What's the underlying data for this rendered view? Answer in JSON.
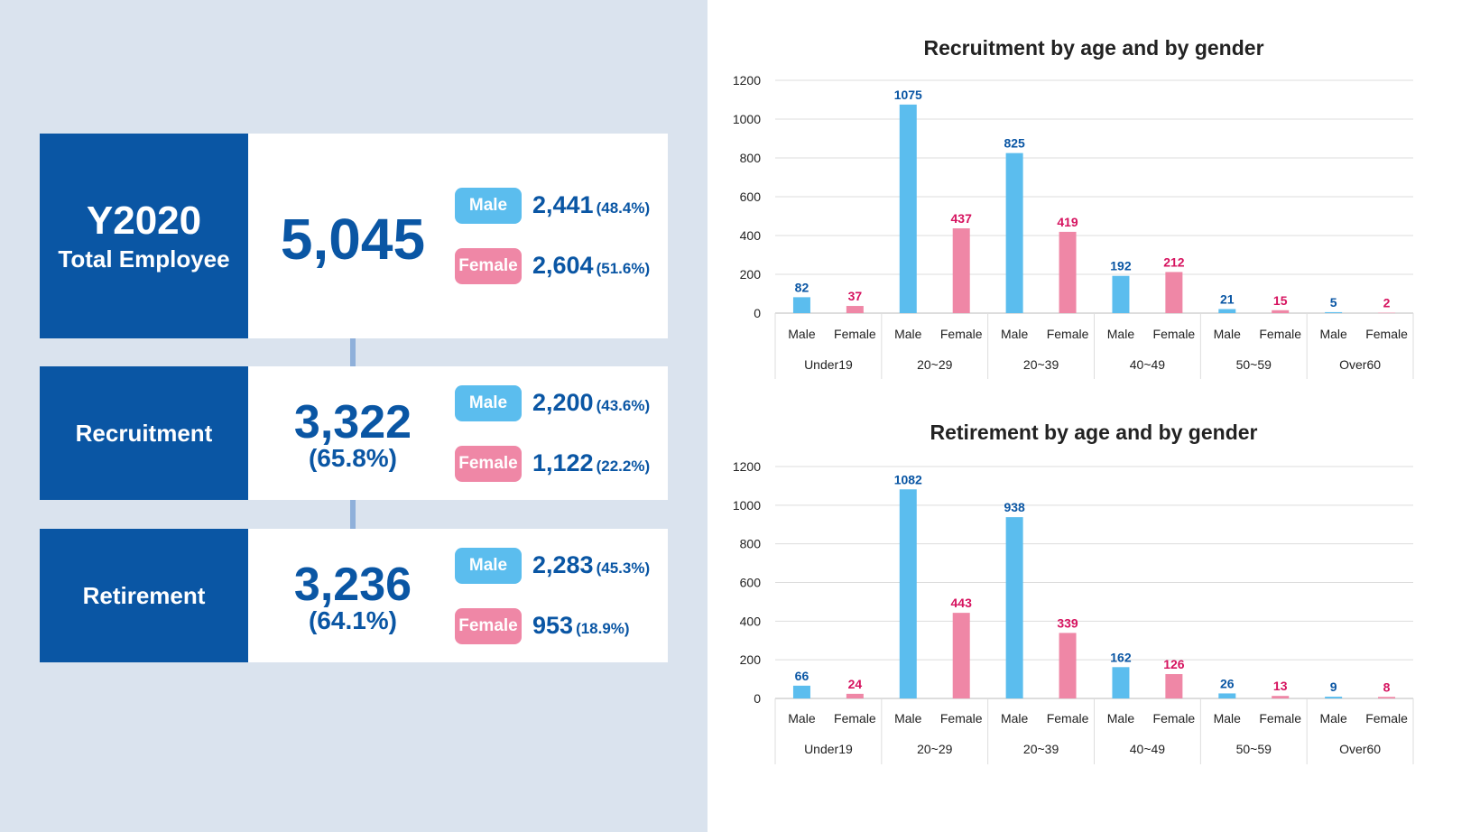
{
  "colors": {
    "primary": "#0a56a4",
    "male": "#5bbdee",
    "female": "#ef87a6",
    "female_label": "#d6135f",
    "male_label": "#0a56a4"
  },
  "summary": {
    "total": {
      "title_line1": "Y2020",
      "title_line2": "Total Employee",
      "value": "5,045",
      "male_label": "Male",
      "male_value": "2,441",
      "male_pct": "(48.4%)",
      "female_label": "Female",
      "female_value": "2,604",
      "female_pct": "(51.6%)"
    },
    "recruitment": {
      "title": "Recruitment",
      "value": "3,322",
      "pct": "(65.8%)",
      "male_label": "Male",
      "male_value": "2,200",
      "male_pct": "(43.6%)",
      "female_label": "Female",
      "female_value": "1,122",
      "female_pct": "(22.2%)"
    },
    "retirement": {
      "title": "Retirement",
      "value": "3,236",
      "pct": "(64.1%)",
      "male_label": "Male",
      "male_value": "2,283",
      "male_pct": "(45.3%)",
      "female_label": "Female",
      "female_value": "953",
      "female_pct": "(18.9%)"
    }
  },
  "chart_data": [
    {
      "type": "bar",
      "title": "Recruitment by age and by gender",
      "categories": [
        "Under19",
        "20~29",
        "20~39",
        "40~49",
        "50~59",
        "Over60"
      ],
      "subcategories": [
        "Male",
        "Female"
      ],
      "series": [
        {
          "name": "Male",
          "values": [
            82,
            1075,
            825,
            192,
            21,
            5
          ]
        },
        {
          "name": "Female",
          "values": [
            37,
            437,
            419,
            212,
            15,
            2
          ]
        }
      ],
      "yticks": [
        "0",
        "200",
        "400",
        "600",
        "800",
        "1000",
        "1200"
      ],
      "ylim": [
        0,
        1200
      ],
      "grid": true
    },
    {
      "type": "bar",
      "title": "Retirement by age and by gender",
      "categories": [
        "Under19",
        "20~29",
        "20~39",
        "40~49",
        "50~59",
        "Over60"
      ],
      "subcategories": [
        "Male",
        "Female"
      ],
      "series": [
        {
          "name": "Male",
          "values": [
            66,
            1082,
            938,
            162,
            26,
            9
          ]
        },
        {
          "name": "Female",
          "values": [
            24,
            443,
            339,
            126,
            13,
            8
          ]
        }
      ],
      "yticks": [
        "0",
        "200",
        "400",
        "600",
        "800",
        "1000",
        "1200"
      ],
      "ylim": [
        0,
        1200
      ],
      "grid": true
    }
  ]
}
